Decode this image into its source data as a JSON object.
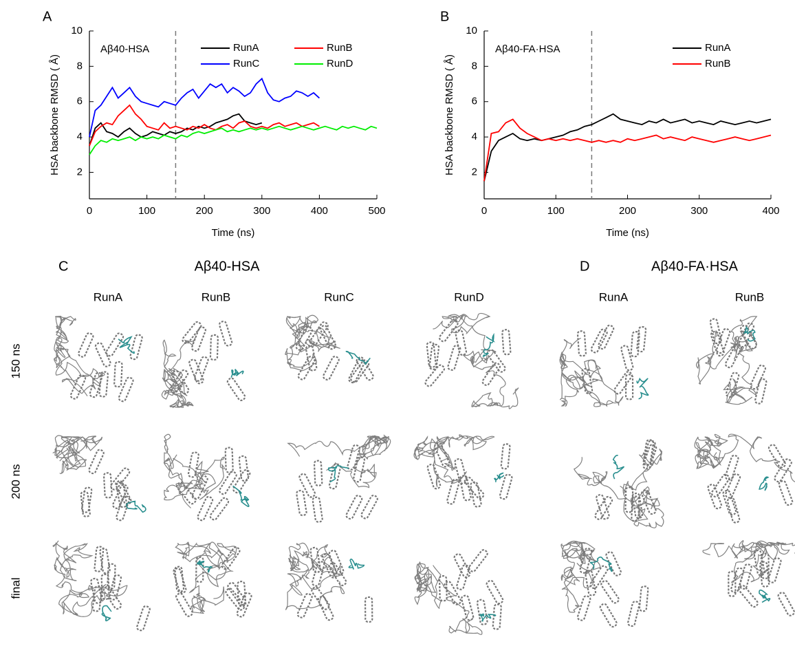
{
  "chart_data": [
    {
      "type": "line",
      "label": "A",
      "annotation": "Aβ40-HSA",
      "xlabel": "Time (ns)",
      "ylabel": "HSA backbone RMSD ( Å)",
      "xlim": [
        0,
        500
      ],
      "xticks": [
        0,
        100,
        200,
        300,
        400,
        500
      ],
      "ylim": [
        0.5,
        10
      ],
      "yticks": [
        2,
        4,
        6,
        8,
        10
      ],
      "vline": 150,
      "legend": "upper right",
      "legend_columns": 2,
      "x": [
        0,
        10,
        20,
        30,
        40,
        50,
        60,
        70,
        80,
        90,
        100,
        110,
        120,
        130,
        140,
        150,
        160,
        170,
        180,
        190,
        200,
        210,
        220,
        230,
        240,
        250,
        260,
        270,
        280,
        290,
        300,
        310,
        320,
        330,
        340,
        350,
        360,
        370,
        380,
        390,
        400,
        410,
        420,
        430,
        440,
        450,
        460,
        470,
        480,
        490,
        500
      ],
      "series": [
        {
          "name": "RunA",
          "color": "#000000",
          "values": [
            3.5,
            4.5,
            4.8,
            4.3,
            4.2,
            4.0,
            4.3,
            4.5,
            4.2,
            4.0,
            4.1,
            4.3,
            4.2,
            4.1,
            4.3,
            4.2,
            4.3,
            4.5,
            4.4,
            4.6,
            4.5,
            4.6,
            4.8,
            4.9,
            5.0,
            5.2,
            5.3,
            4.9,
            4.8,
            4.7,
            4.8,
            null,
            null,
            null,
            null,
            null,
            null,
            null,
            null,
            null,
            null,
            null,
            null,
            null,
            null,
            null,
            null,
            null,
            null,
            null,
            null
          ]
        },
        {
          "name": "RunB",
          "color": "#ff0000",
          "values": [
            3.5,
            4.3,
            4.6,
            4.8,
            4.7,
            5.2,
            5.5,
            5.8,
            5.3,
            5.0,
            4.6,
            4.5,
            4.4,
            4.8,
            4.5,
            4.6,
            4.5,
            4.4,
            4.6,
            4.5,
            4.7,
            4.5,
            4.4,
            4.6,
            4.7,
            4.5,
            4.8,
            4.9,
            4.6,
            4.5,
            4.6,
            4.5,
            4.7,
            4.8,
            4.6,
            4.7,
            4.8,
            4.6,
            4.7,
            4.8,
            4.6,
            null,
            null,
            null,
            null,
            null,
            null,
            null,
            null,
            null,
            null
          ]
        },
        {
          "name": "RunC",
          "color": "#0000ff",
          "values": [
            4.0,
            5.5,
            5.8,
            6.3,
            6.8,
            6.2,
            6.5,
            6.8,
            6.3,
            6.0,
            5.9,
            5.8,
            5.7,
            6.0,
            5.9,
            5.8,
            6.2,
            6.5,
            6.7,
            6.2,
            6.6,
            7.0,
            6.8,
            7.0,
            6.5,
            6.8,
            6.6,
            6.3,
            6.5,
            7.0,
            7.3,
            6.5,
            6.1,
            6.0,
            6.2,
            6.3,
            6.6,
            6.5,
            6.3,
            6.5,
            6.2,
            null,
            null,
            null,
            null,
            null,
            null,
            null,
            null,
            null,
            null
          ]
        },
        {
          "name": "RunD",
          "color": "#00ee00",
          "values": [
            3.0,
            3.5,
            3.8,
            3.7,
            3.9,
            3.8,
            3.9,
            4.0,
            3.8,
            4.0,
            3.9,
            4.0,
            3.9,
            4.1,
            4.0,
            3.9,
            4.1,
            4.0,
            4.2,
            4.3,
            4.2,
            4.3,
            4.4,
            4.5,
            4.3,
            4.4,
            4.3,
            4.4,
            4.5,
            4.4,
            4.5,
            4.4,
            4.5,
            4.6,
            4.5,
            4.4,
            4.5,
            4.6,
            4.5,
            4.4,
            4.5,
            4.6,
            4.5,
            4.4,
            4.6,
            4.5,
            4.6,
            4.5,
            4.4,
            4.6,
            4.5
          ]
        }
      ]
    },
    {
      "type": "line",
      "label": "B",
      "annotation": "Aβ40-FA·HSA",
      "xlabel": "Time (ns)",
      "ylabel": "HSA backbone RMSD ( Å)",
      "xlim": [
        0,
        400
      ],
      "xticks": [
        0,
        100,
        200,
        300,
        400
      ],
      "ylim": [
        0.5,
        10
      ],
      "yticks": [
        2,
        4,
        6,
        8,
        10
      ],
      "vline": 150,
      "legend": "upper right",
      "legend_columns": 1,
      "x": [
        0,
        10,
        20,
        30,
        40,
        50,
        60,
        70,
        80,
        90,
        100,
        110,
        120,
        130,
        140,
        150,
        160,
        170,
        180,
        190,
        200,
        210,
        220,
        230,
        240,
        250,
        260,
        270,
        280,
        290,
        300,
        310,
        320,
        330,
        340,
        350,
        360,
        370,
        380,
        390,
        400
      ],
      "series": [
        {
          "name": "RunA",
          "color": "#000000",
          "values": [
            1.5,
            3.2,
            3.8,
            4.0,
            4.2,
            3.9,
            3.8,
            3.9,
            3.8,
            3.9,
            4.0,
            4.1,
            4.3,
            4.4,
            4.6,
            4.7,
            4.9,
            5.1,
            5.3,
            5.0,
            4.9,
            4.8,
            4.7,
            4.9,
            4.8,
            5.0,
            4.8,
            4.9,
            5.0,
            4.8,
            4.9,
            4.8,
            4.7,
            4.9,
            4.8,
            4.7,
            4.8,
            4.9,
            4.8,
            4.9,
            5.0
          ]
        },
        {
          "name": "RunB",
          "color": "#ff0000",
          "values": [
            1.5,
            4.2,
            4.3,
            4.8,
            5.0,
            4.5,
            4.2,
            4.0,
            3.8,
            3.9,
            3.8,
            3.9,
            3.8,
            3.9,
            3.8,
            3.7,
            3.8,
            3.7,
            3.8,
            3.7,
            3.9,
            3.8,
            3.9,
            4.0,
            4.1,
            3.9,
            4.0,
            3.9,
            3.8,
            4.0,
            3.9,
            3.8,
            3.7,
            3.8,
            3.9,
            4.0,
            3.9,
            3.8,
            3.9,
            4.0,
            4.1
          ]
        }
      ]
    }
  ],
  "panels": [
    {
      "label": "C",
      "title": "Aβ40-HSA",
      "columns": [
        "RunA",
        "RunB",
        "RunC",
        "RunD"
      ]
    },
    {
      "label": "D",
      "title": "Aβ40-FA·HSA",
      "columns": [
        "RunA",
        "RunB"
      ]
    }
  ],
  "rows": [
    "150 ns",
    "200 ns",
    "final"
  ]
}
